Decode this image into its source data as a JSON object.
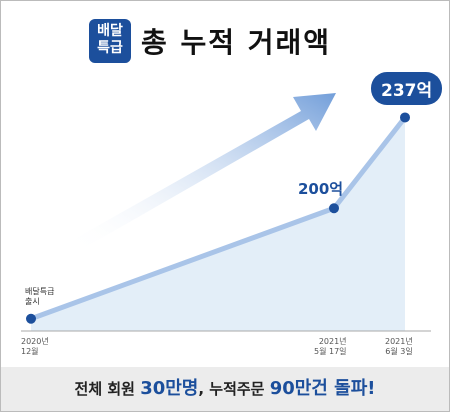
{
  "chart_data": {
    "type": "line",
    "logo": "배달\n특급",
    "title": "총 누적 거래액",
    "categories": [
      "2020년\n12월",
      "2021년\n5월 17일",
      "2021년\n6월 3일"
    ],
    "series": [
      {
        "color": "#a9c4e8",
        "values": [
          155,
          200,
          237
        ],
        "value_labels": [
          null,
          "200억",
          "237억"
        ]
      }
    ],
    "annotation": "배달특급\n출시",
    "ylim": [
      150,
      260
    ],
    "footer": [
      "전체 회원 ",
      "30만명",
      ", 누적주문 ",
      "90만건 돌파!"
    ]
  }
}
